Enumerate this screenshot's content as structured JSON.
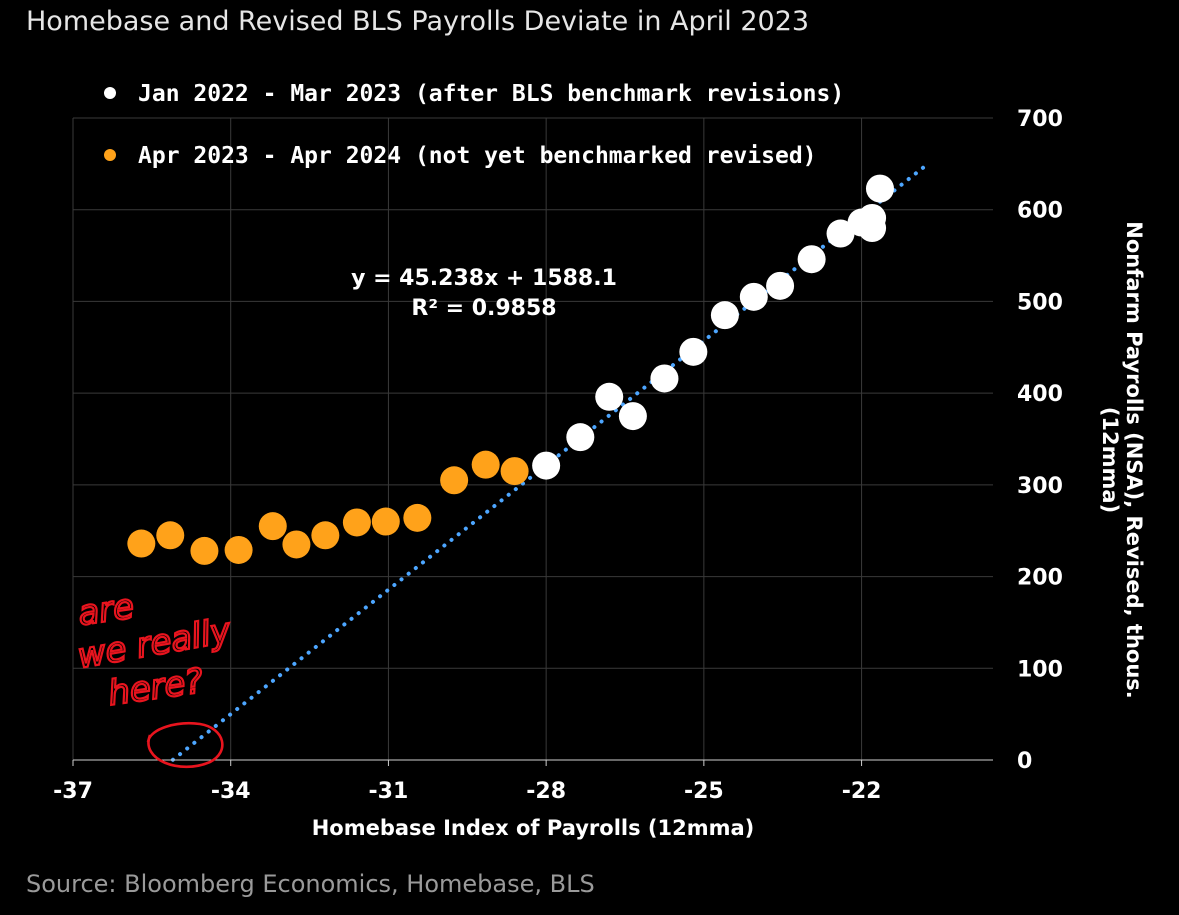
{
  "chart_data": {
    "type": "scatter",
    "title": "Homebase and Revised BLS Payrolls Deviate in April 2023",
    "xlabel": "Homebase Index of Payrolls (12mma)",
    "ylabel_lines": [
      "Nonfarm Payrolls (NSA), Revised, thous.",
      "(12mma)"
    ],
    "xlim": [
      -37,
      -19.5
    ],
    "ylim": [
      0,
      700
    ],
    "x_ticks": [
      -37,
      -34,
      -31,
      -28,
      -25,
      -22
    ],
    "y_ticks": [
      0,
      100,
      200,
      300,
      400,
      500,
      600,
      700
    ],
    "grid": true,
    "legend_position": "top-left",
    "series": [
      {
        "name": "Jan 2022 - Mar 2023 (after BLS benchmark revisions)",
        "color": "#ffffff",
        "points": [
          {
            "x": -28.0,
            "y": 321
          },
          {
            "x": -27.35,
            "y": 352
          },
          {
            "x": -26.8,
            "y": 396
          },
          {
            "x": -26.35,
            "y": 375
          },
          {
            "x": -25.75,
            "y": 416
          },
          {
            "x": -25.2,
            "y": 445
          },
          {
            "x": -24.6,
            "y": 485
          },
          {
            "x": -24.05,
            "y": 505
          },
          {
            "x": -23.55,
            "y": 517
          },
          {
            "x": -22.95,
            "y": 546
          },
          {
            "x": -22.4,
            "y": 574
          },
          {
            "x": -22.0,
            "y": 586
          },
          {
            "x": -21.8,
            "y": 591
          },
          {
            "x": -21.8,
            "y": 580
          },
          {
            "x": -21.65,
            "y": 623
          }
        ]
      },
      {
        "name": "Apr 2023 - Apr 2024 (not yet benchmarked revised)",
        "color": "#ffa21a",
        "points": [
          {
            "x": -35.7,
            "y": 236
          },
          {
            "x": -35.15,
            "y": 245
          },
          {
            "x": -34.5,
            "y": 228
          },
          {
            "x": -33.85,
            "y": 229
          },
          {
            "x": -33.2,
            "y": 255
          },
          {
            "x": -32.75,
            "y": 235
          },
          {
            "x": -32.2,
            "y": 245
          },
          {
            "x": -31.6,
            "y": 259
          },
          {
            "x": -31.05,
            "y": 260
          },
          {
            "x": -30.45,
            "y": 264
          },
          {
            "x": -29.75,
            "y": 305
          },
          {
            "x": -29.15,
            "y": 322
          },
          {
            "x": -28.6,
            "y": 315
          }
        ]
      }
    ],
    "trendline": {
      "style": "dotted",
      "color": "#4da6ff",
      "slope": 45.238,
      "intercept": 1588.1,
      "x_range": [
        -35.1,
        -20.75
      ],
      "label_line1": "y = 45.238x + 1588.1",
      "label_line2": "R² = 0.9858"
    },
    "annotation": "are we really here?"
  },
  "annotation_lines": [
    "are",
    "we really",
    "here?"
  ],
  "source": "Source: Bloomberg Economics, Homebase, BLS"
}
